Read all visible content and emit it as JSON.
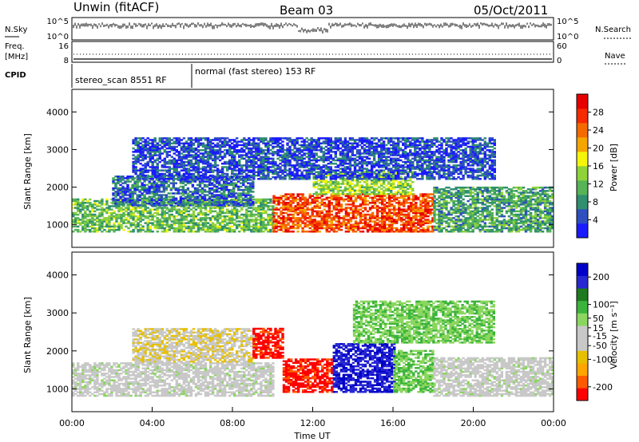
{
  "header": {
    "station": "Unwin (fitACF)",
    "beam": "Beam 03",
    "date": "05/Oct/2011"
  },
  "status_panel": {
    "nsky_label": "N.Sky",
    "nsearch_label": "N.Search",
    "nsky_ticks": [
      "10^5",
      "10^0"
    ],
    "nsearch_ticks": [
      "10^5",
      "10^0"
    ],
    "freq_label_top": "Freq.",
    "freq_label_bottom": "[MHz]",
    "freq_ticks": [
      "16",
      "8"
    ],
    "nave_label": "Nave",
    "nave_ticks": [
      "60",
      "0"
    ],
    "cpid_label": "CPID",
    "cpid_segments": [
      {
        "label": "stereo_scan 8551 RF",
        "start_hour": 0,
        "end_hour": 6
      },
      {
        "label": "normal (fast stereo) 153 RF",
        "start_hour": 6,
        "end_hour": 24
      }
    ]
  },
  "colors": {
    "power": [
      "#1a1aff",
      "#2f4fbf",
      "#2f8f6f",
      "#56b356",
      "#8fd23a",
      "#f5f50a",
      "#f5a500",
      "#f56a00",
      "#f52a00",
      "#e60000"
    ],
    "velocity": [
      "#ff0000",
      "#ff5a00",
      "#ffa500",
      "#e6c000",
      "#c8c8c8",
      "#c8c8c8",
      "#8bd65f",
      "#3cb43c",
      "#1e7a1e",
      "#2828d2",
      "#0000c8"
    ]
  },
  "chart_data": [
    {
      "type": "heatmap",
      "name": "power",
      "xlabel": "",
      "ylabel": "Slant Range [km]",
      "xlim": [
        0,
        24
      ],
      "ylim": [
        400,
        4600
      ],
      "yticks": [
        "4000",
        "3000",
        "2000",
        "1000"
      ],
      "colorbar_label": "Power [dB]",
      "colorbar_ticks": [
        "28",
        "24",
        "20",
        "16",
        "12",
        "8",
        "4"
      ],
      "colorbar_range": [
        0,
        32
      ],
      "bands": [
        {
          "from_hour": 0,
          "to_hour": 10,
          "range_km": [
            800,
            1700
          ],
          "power_db": 12
        },
        {
          "from_hour": 2,
          "to_hour": 9,
          "range_km": [
            1500,
            2300
          ],
          "power_db": 6
        },
        {
          "from_hour": 10,
          "to_hour": 18,
          "range_km": [
            800,
            1800
          ],
          "power_db": 26
        },
        {
          "from_hour": 12,
          "to_hour": 17,
          "range_km": [
            1800,
            2400
          ],
          "power_db": 14
        },
        {
          "from_hour": 18,
          "to_hour": 24,
          "range_km": [
            800,
            2000
          ],
          "power_db": 10
        },
        {
          "from_hour": 3,
          "to_hour": 21,
          "range_km": [
            2200,
            3300
          ],
          "power_db": 4
        }
      ]
    },
    {
      "type": "heatmap",
      "name": "velocity",
      "xlabel": "Time UT",
      "ylabel": "Slant Range [km]",
      "xlim": [
        0,
        24
      ],
      "ylim": [
        400,
        4600
      ],
      "xticks": [
        "00:00",
        "04:00",
        "08:00",
        "12:00",
        "16:00",
        "20:00",
        "00:00"
      ],
      "yticks": [
        "4000",
        "3000",
        "2000",
        "1000"
      ],
      "colorbar_label": "Velocity [m s⁻¹]",
      "colorbar_ticks": [
        "200",
        "100",
        "50",
        "15",
        "-15",
        "-50",
        "-100",
        "-200"
      ],
      "colorbar_range": [
        -250,
        250
      ],
      "bands": [
        {
          "from_hour": 0,
          "to_hour": 10,
          "range_km": [
            800,
            1700
          ],
          "velocity": 0
        },
        {
          "from_hour": 3,
          "to_hour": 9,
          "range_km": [
            1700,
            2600
          ],
          "velocity": -60
        },
        {
          "from_hour": 9,
          "to_hour": 10.5,
          "range_km": [
            1800,
            2600
          ],
          "velocity": -220
        },
        {
          "from_hour": 10.5,
          "to_hour": 13,
          "range_km": [
            900,
            1800
          ],
          "velocity": -220
        },
        {
          "from_hour": 13,
          "to_hour": 16,
          "range_km": [
            900,
            2200
          ],
          "velocity": 200
        },
        {
          "from_hour": 16,
          "to_hour": 18,
          "range_km": [
            900,
            2000
          ],
          "velocity": 60
        },
        {
          "from_hour": 18,
          "to_hour": 24,
          "range_km": [
            800,
            1800
          ],
          "velocity": 0
        },
        {
          "from_hour": 14,
          "to_hour": 21,
          "range_km": [
            2200,
            3300
          ],
          "velocity": 60
        }
      ]
    }
  ]
}
